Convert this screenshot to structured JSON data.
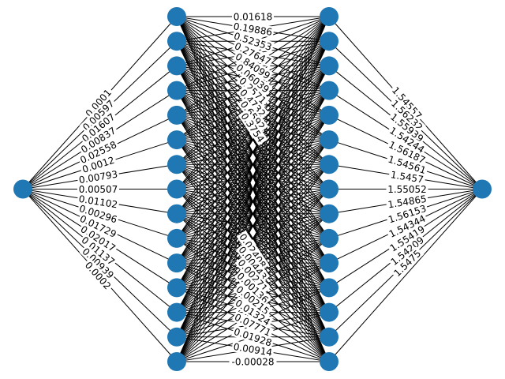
{
  "diagram": {
    "type": "neural-network",
    "layers": [
      1,
      15,
      15,
      1
    ],
    "node_color": "#1f77b4",
    "edge_color": "#000000",
    "input_weights": [
      "0.0001",
      "0.00597",
      "0.01607",
      "0.00837",
      "0.02558",
      "0.0012",
      "0.00793",
      "0.00507",
      "0.01102",
      "0.00296",
      "0.01729",
      "0.02017",
      "0.01137",
      "0.00939",
      "0.0002"
    ],
    "hidden_weights_top": [
      "0.01618",
      "0.19886",
      "0.52353",
      "0.27647",
      "0.84099",
      "0.06039",
      "0.2571",
      "0.4732",
      "0.6592",
      "0.3754"
    ],
    "hidden_weights_bottom": [
      "0.02408",
      "0.00443",
      "0.00271",
      "0.00136",
      "0.00215",
      "0.01324",
      "0.07771",
      "0.01928",
      "0.00914",
      "-0.00028"
    ],
    "output_weights": [
      "1.54557",
      "1.56232",
      "1.55939",
      "1.54244",
      "1.56187",
      "1.54561",
      "1.5457",
      "1.55052",
      "1.54865",
      "1.56153",
      "1.54344",
      "1.55419",
      "1.54209",
      "1.5475"
    ]
  }
}
